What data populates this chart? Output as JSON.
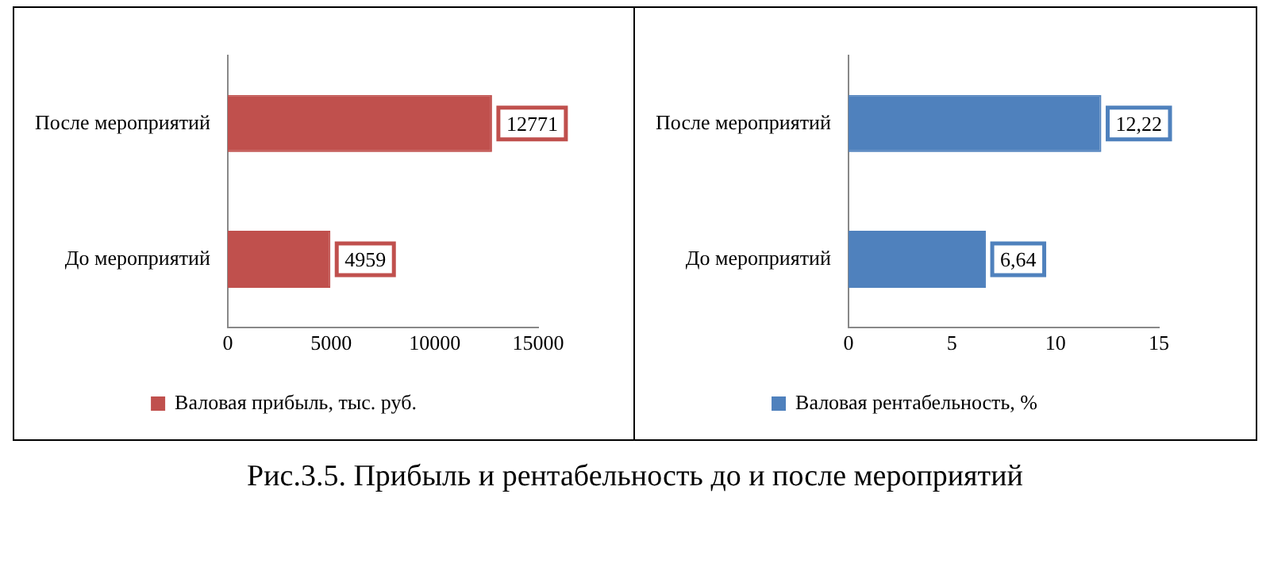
{
  "chart_data": [
    {
      "type": "bar",
      "orientation": "horizontal",
      "categories": [
        "После мероприятий",
        "До мероприятий"
      ],
      "series": [
        {
          "name": "Валовая прибыль, тыс. руб.",
          "color": "#c0504d",
          "values": [
            12771,
            4959
          ]
        }
      ],
      "xlim": [
        0,
        15000
      ],
      "xticks": [
        0,
        5000,
        10000,
        15000
      ],
      "data_labels": true,
      "legend": "bottom",
      "grid": false,
      "annotations": [
        "Рис.3.5. Прибыль и рентабельность до и после мероприятий"
      ]
    },
    {
      "type": "bar",
      "orientation": "horizontal",
      "categories": [
        "После мероприятий",
        "До мероприятий"
      ],
      "series": [
        {
          "name": "Валовая рентабельность, %",
          "color": "#4f81bd",
          "values": [
            12.22,
            6.64
          ],
          "value_labels": [
            "12,22",
            "6,64"
          ]
        }
      ],
      "xlim": [
        0,
        15
      ],
      "xticks": [
        0,
        5,
        10,
        15
      ],
      "legend": "bottom",
      "grid": false
    }
  ]
}
